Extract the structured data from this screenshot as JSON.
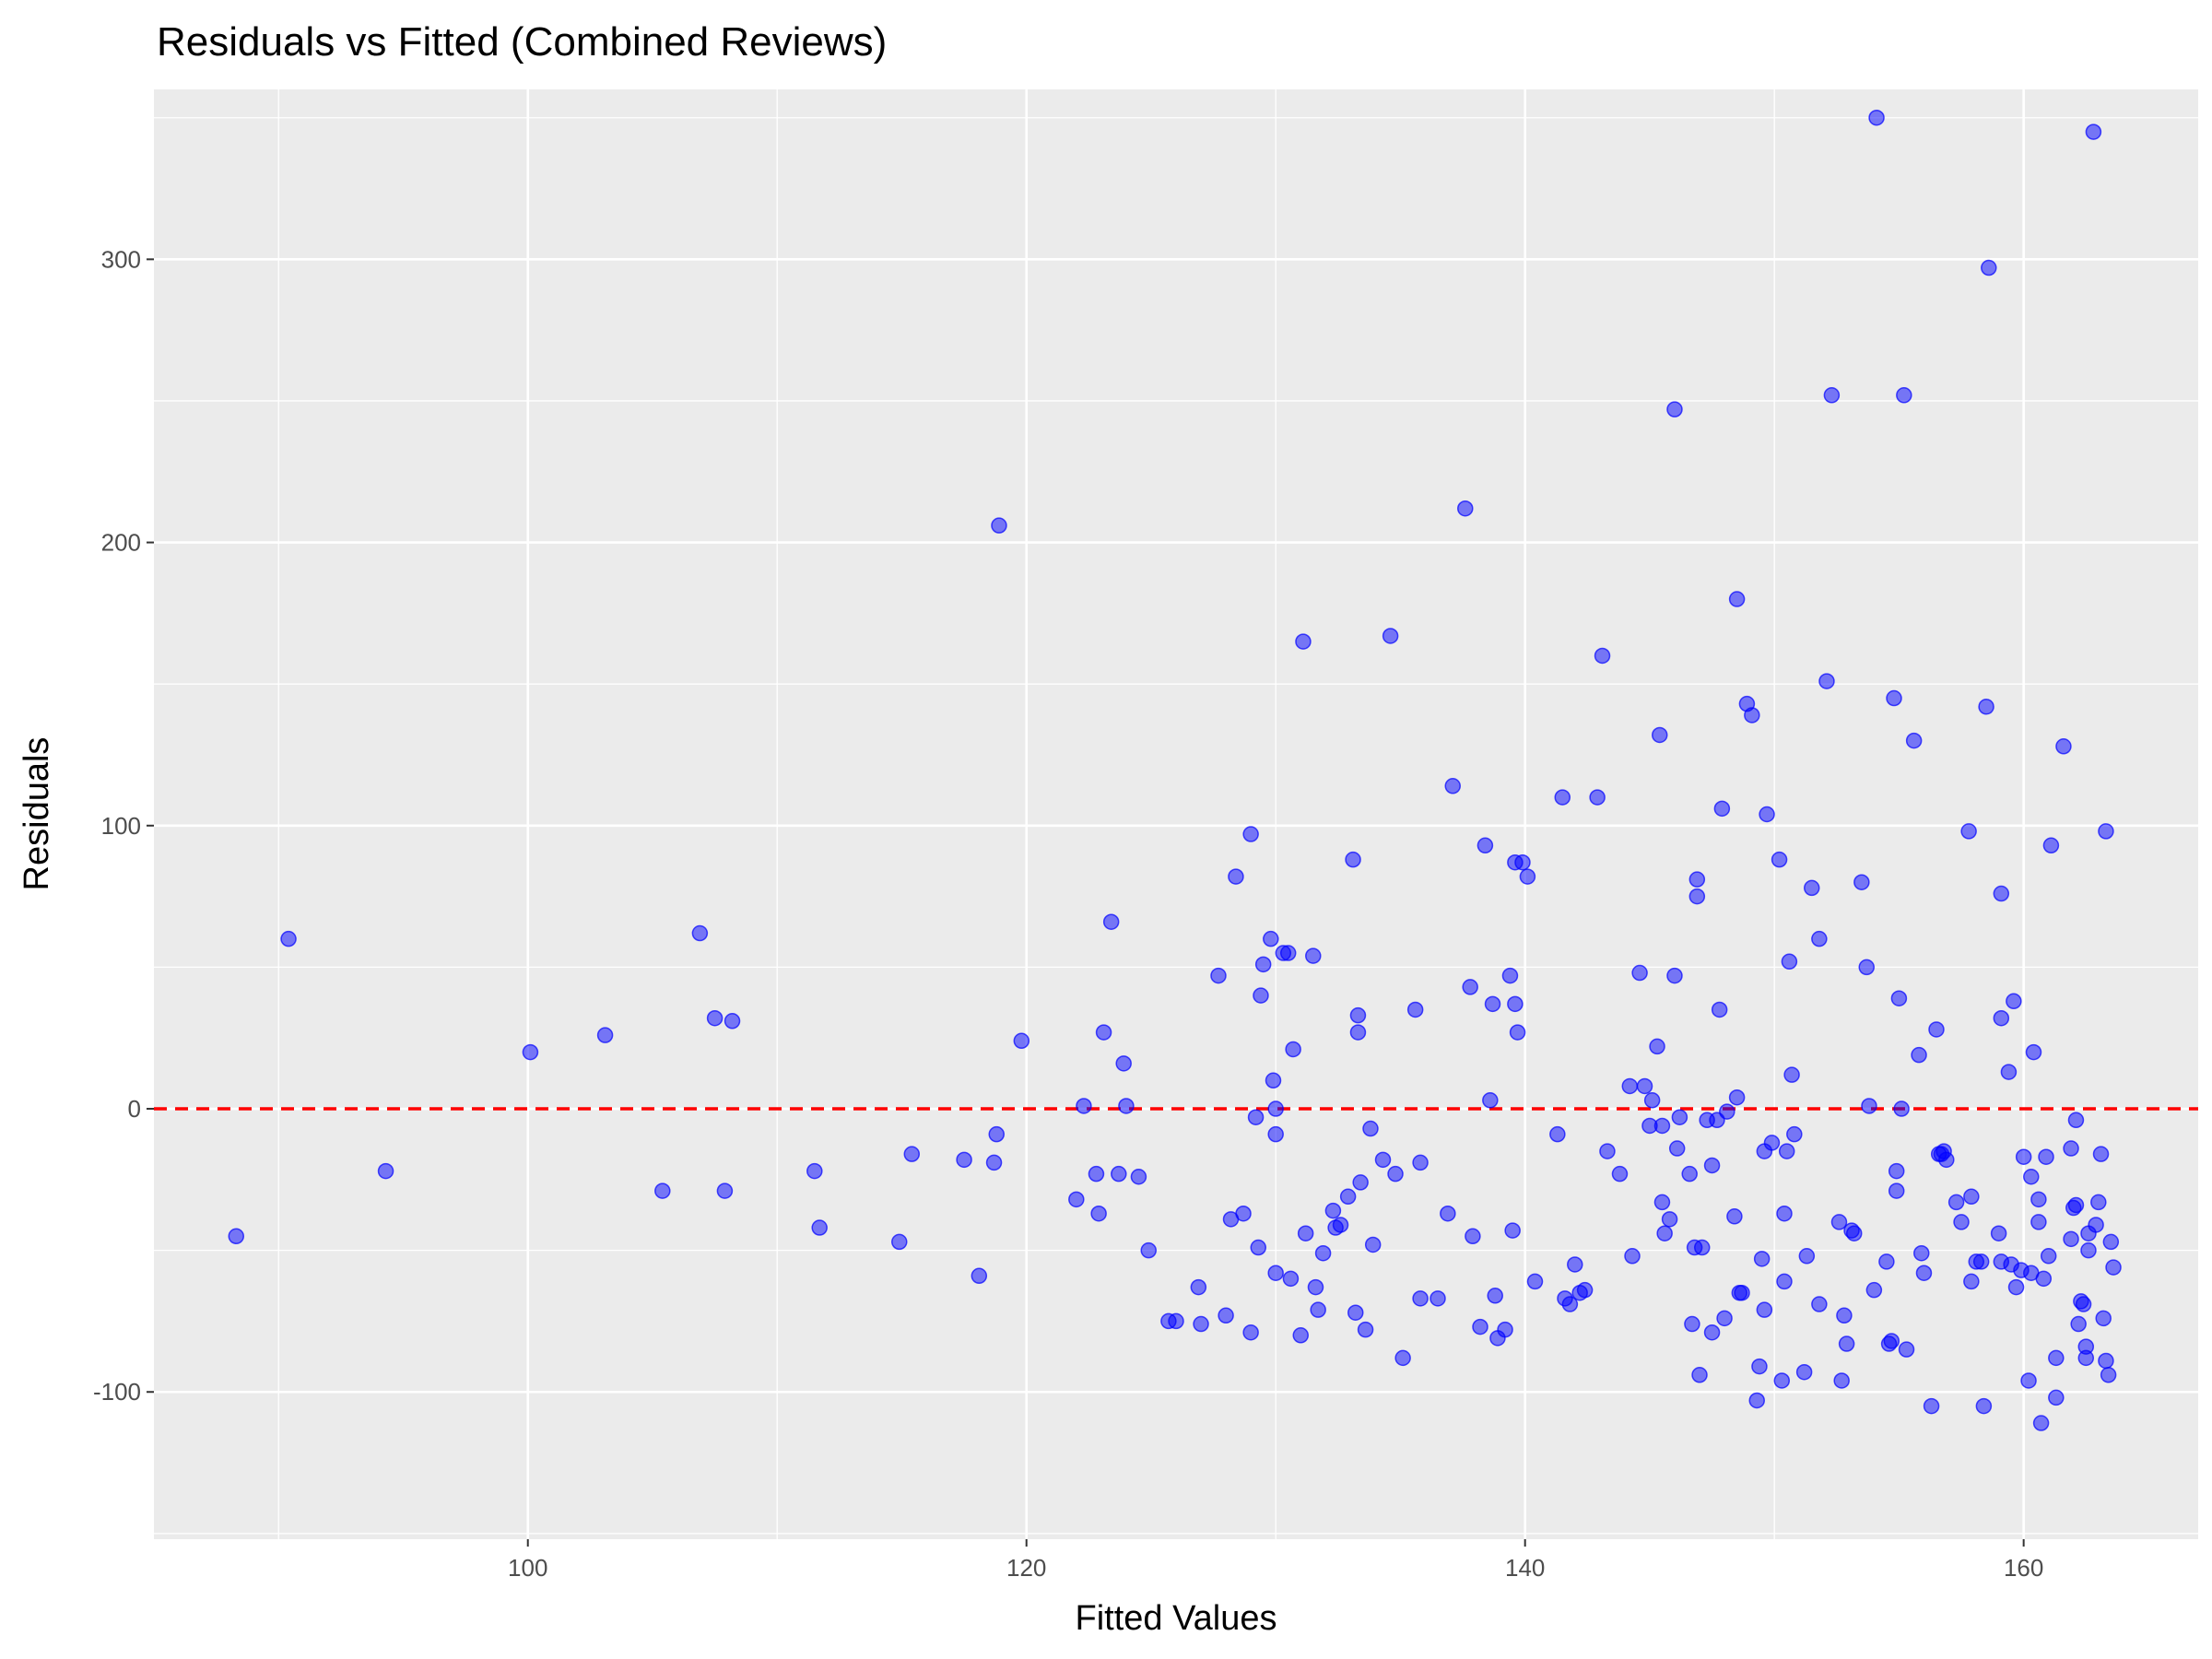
{
  "chart_data": {
    "type": "scatter",
    "title": "Residuals vs Fitted (Combined Reviews)",
    "xlabel": "Fitted Values",
    "ylabel": "Residuals",
    "xlim": [
      85,
      167
    ],
    "ylim": [
      -152,
      360
    ],
    "x_ticks": [
      100,
      120,
      140,
      160
    ],
    "y_ticks": [
      -100,
      0,
      100,
      200,
      300
    ],
    "grid": true,
    "background": "#ebebeb",
    "point_color": "#0000ff",
    "point_opacity": 0.5,
    "reference_line": {
      "y": 0,
      "color": "#ff0000",
      "style": "dashed"
    },
    "points": [
      [
        88.3,
        -45
      ],
      [
        90.4,
        60
      ],
      [
        94.3,
        -22
      ],
      [
        100.1,
        20
      ],
      [
        103.1,
        26
      ],
      [
        105.4,
        -29
      ],
      [
        106.9,
        62
      ],
      [
        107.5,
        32
      ],
      [
        107.9,
        -29
      ],
      [
        108.2,
        31
      ],
      [
        111.5,
        -22
      ],
      [
        111.7,
        -42
      ],
      [
        114.9,
        -47
      ],
      [
        115.4,
        -16
      ],
      [
        117.5,
        -18
      ],
      [
        118.1,
        -59
      ],
      [
        118.7,
        -19
      ],
      [
        118.8,
        -9
      ],
      [
        118.9,
        206
      ],
      [
        119.8,
        24
      ],
      [
        122.0,
        -32
      ],
      [
        122.3,
        1
      ],
      [
        122.8,
        -23
      ],
      [
        122.9,
        -37
      ],
      [
        123.1,
        27
      ],
      [
        123.4,
        66
      ],
      [
        123.7,
        -23
      ],
      [
        123.9,
        16
      ],
      [
        124.0,
        1
      ],
      [
        124.5,
        -24
      ],
      [
        124.9,
        -50
      ],
      [
        125.7,
        -75
      ],
      [
        126.0,
        -75
      ],
      [
        126.9,
        -63
      ],
      [
        127.0,
        -76
      ],
      [
        127.7,
        47
      ],
      [
        128.0,
        -73
      ],
      [
        128.2,
        -39
      ],
      [
        128.4,
        82
      ],
      [
        128.7,
        -37
      ],
      [
        129.0,
        97
      ],
      [
        129.0,
        -79
      ],
      [
        129.2,
        -3
      ],
      [
        129.3,
        -49
      ],
      [
        129.4,
        40
      ],
      [
        129.5,
        51
      ],
      [
        129.8,
        60
      ],
      [
        129.9,
        10
      ],
      [
        130.0,
        -58
      ],
      [
        130.0,
        0
      ],
      [
        130.0,
        -9
      ],
      [
        130.3,
        55
      ],
      [
        130.5,
        55
      ],
      [
        130.6,
        -60
      ],
      [
        130.7,
        21
      ],
      [
        131.0,
        -80
      ],
      [
        131.1,
        165
      ],
      [
        131.2,
        -44
      ],
      [
        131.5,
        54
      ],
      [
        131.6,
        -63
      ],
      [
        131.7,
        -71
      ],
      [
        131.9,
        -51
      ],
      [
        132.3,
        -36
      ],
      [
        132.4,
        -42
      ],
      [
        132.6,
        -41
      ],
      [
        132.9,
        -31
      ],
      [
        133.1,
        88
      ],
      [
        133.2,
        -72
      ],
      [
        133.3,
        33
      ],
      [
        133.3,
        27
      ],
      [
        133.4,
        -26
      ],
      [
        133.6,
        -78
      ],
      [
        133.8,
        -7
      ],
      [
        133.9,
        -48
      ],
      [
        134.3,
        -18
      ],
      [
        134.6,
        167
      ],
      [
        134.8,
        -23
      ],
      [
        135.1,
        -88
      ],
      [
        135.6,
        35
      ],
      [
        135.8,
        -19
      ],
      [
        135.8,
        -67
      ],
      [
        136.5,
        -67
      ],
      [
        136.9,
        -37
      ],
      [
        137.1,
        114
      ],
      [
        137.6,
        212
      ],
      [
        137.8,
        43
      ],
      [
        137.9,
        -45
      ],
      [
        138.2,
        -77
      ],
      [
        138.4,
        93
      ],
      [
        138.6,
        3
      ],
      [
        138.7,
        37
      ],
      [
        138.8,
        -66
      ],
      [
        138.9,
        -81
      ],
      [
        139.2,
        -78
      ],
      [
        139.4,
        47
      ],
      [
        139.5,
        -43
      ],
      [
        139.6,
        87
      ],
      [
        139.6,
        37
      ],
      [
        139.7,
        27
      ],
      [
        139.9,
        87
      ],
      [
        140.1,
        82
      ],
      [
        140.4,
        -61
      ],
      [
        141.3,
        -9
      ],
      [
        141.5,
        110
      ],
      [
        141.6,
        -67
      ],
      [
        141.8,
        -69
      ],
      [
        142.0,
        -55
      ],
      [
        142.2,
        -65
      ],
      [
        142.4,
        -64
      ],
      [
        142.9,
        110
      ],
      [
        143.1,
        160
      ],
      [
        143.3,
        -15
      ],
      [
        143.8,
        -23
      ],
      [
        144.2,
        8
      ],
      [
        144.3,
        -52
      ],
      [
        144.6,
        48
      ],
      [
        144.8,
        8
      ],
      [
        145.0,
        -6
      ],
      [
        145.1,
        3
      ],
      [
        145.3,
        22
      ],
      [
        145.4,
        132
      ],
      [
        145.5,
        -33
      ],
      [
        145.5,
        -6
      ],
      [
        145.6,
        -44
      ],
      [
        145.8,
        -39
      ],
      [
        146.0,
        47
      ],
      [
        146.0,
        247
      ],
      [
        146.1,
        -14
      ],
      [
        146.2,
        -3
      ],
      [
        146.6,
        -23
      ],
      [
        146.7,
        -76
      ],
      [
        146.8,
        -49
      ],
      [
        146.9,
        81
      ],
      [
        146.9,
        75
      ],
      [
        147.0,
        -94
      ],
      [
        147.1,
        -49
      ],
      [
        147.3,
        -4
      ],
      [
        147.5,
        -20
      ],
      [
        147.5,
        -79
      ],
      [
        147.7,
        -4
      ],
      [
        147.8,
        35
      ],
      [
        147.9,
        106
      ],
      [
        148.0,
        -74
      ],
      [
        148.1,
        -1
      ],
      [
        148.4,
        -38
      ],
      [
        148.5,
        180
      ],
      [
        148.5,
        4
      ],
      [
        148.6,
        -65
      ],
      [
        148.7,
        -65
      ],
      [
        148.9,
        143
      ],
      [
        149.1,
        139
      ],
      [
        149.3,
        -103
      ],
      [
        149.4,
        -91
      ],
      [
        149.5,
        -53
      ],
      [
        149.6,
        -15
      ],
      [
        149.6,
        -71
      ],
      [
        149.7,
        104
      ],
      [
        149.9,
        -12
      ],
      [
        150.2,
        88
      ],
      [
        150.3,
        -96
      ],
      [
        150.4,
        -37
      ],
      [
        150.4,
        -61
      ],
      [
        150.5,
        -15
      ],
      [
        150.6,
        52
      ],
      [
        150.7,
        12
      ],
      [
        150.8,
        -9
      ],
      [
        151.2,
        -93
      ],
      [
        151.3,
        -52
      ],
      [
        151.5,
        78
      ],
      [
        151.8,
        60
      ],
      [
        151.8,
        -69
      ],
      [
        152.1,
        151
      ],
      [
        152.3,
        252
      ],
      [
        152.6,
        -40
      ],
      [
        152.7,
        -96
      ],
      [
        152.8,
        -73
      ],
      [
        152.9,
        -83
      ],
      [
        153.1,
        -43
      ],
      [
        153.2,
        -44
      ],
      [
        153.5,
        80
      ],
      [
        153.7,
        50
      ],
      [
        153.8,
        1
      ],
      [
        154.0,
        -64
      ],
      [
        154.1,
        350
      ],
      [
        154.5,
        -54
      ],
      [
        154.6,
        -83
      ],
      [
        154.7,
        -82
      ],
      [
        154.8,
        145
      ],
      [
        154.9,
        -29
      ],
      [
        154.9,
        -22
      ],
      [
        155.0,
        39
      ],
      [
        155.1,
        0
      ],
      [
        155.2,
        252
      ],
      [
        155.3,
        -85
      ],
      [
        155.6,
        130
      ],
      [
        155.8,
        19
      ],
      [
        155.9,
        -51
      ],
      [
        156.0,
        -58
      ],
      [
        156.3,
        -105
      ],
      [
        156.5,
        28
      ],
      [
        156.6,
        -16
      ],
      [
        156.7,
        -16
      ],
      [
        156.8,
        -15
      ],
      [
        156.9,
        -18
      ],
      [
        157.3,
        -33
      ],
      [
        157.5,
        -40
      ],
      [
        157.8,
        98
      ],
      [
        157.9,
        -61
      ],
      [
        157.9,
        -31
      ],
      [
        158.1,
        -54
      ],
      [
        158.3,
        -54
      ],
      [
        158.4,
        -105
      ],
      [
        158.5,
        142
      ],
      [
        158.6,
        297
      ],
      [
        159.0,
        -44
      ],
      [
        159.1,
        76
      ],
      [
        159.1,
        -54
      ],
      [
        159.1,
        32
      ],
      [
        159.4,
        13
      ],
      [
        159.5,
        -55
      ],
      [
        159.6,
        38
      ],
      [
        159.7,
        -63
      ],
      [
        159.9,
        -57
      ],
      [
        160.0,
        -17
      ],
      [
        160.2,
        -96
      ],
      [
        160.3,
        -24
      ],
      [
        160.3,
        -58
      ],
      [
        160.4,
        20
      ],
      [
        160.6,
        -32
      ],
      [
        160.6,
        -40
      ],
      [
        160.7,
        -111
      ],
      [
        160.8,
        -60
      ],
      [
        160.9,
        -17
      ],
      [
        161.0,
        -52
      ],
      [
        161.1,
        93
      ],
      [
        161.3,
        -88
      ],
      [
        161.3,
        -102
      ],
      [
        161.6,
        128
      ],
      [
        161.9,
        -14
      ],
      [
        161.9,
        -46
      ],
      [
        162.0,
        -35
      ],
      [
        162.1,
        -4
      ],
      [
        162.1,
        -34
      ],
      [
        162.2,
        -76
      ],
      [
        162.3,
        -68
      ],
      [
        162.4,
        -69
      ],
      [
        162.5,
        -84
      ],
      [
        162.5,
        -88
      ],
      [
        162.6,
        -50
      ],
      [
        162.6,
        -44
      ],
      [
        162.8,
        345
      ],
      [
        162.9,
        -41
      ],
      [
        163.0,
        -33
      ],
      [
        163.1,
        -16
      ],
      [
        163.2,
        -74
      ],
      [
        163.3,
        98
      ],
      [
        163.3,
        -89
      ],
      [
        163.4,
        -94
      ],
      [
        163.5,
        -47
      ],
      [
        163.6,
        -56
      ]
    ]
  }
}
